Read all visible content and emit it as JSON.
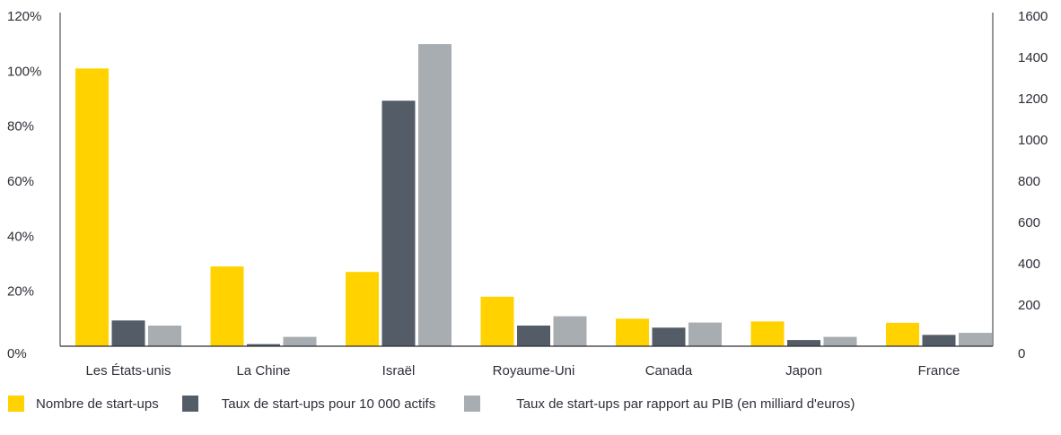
{
  "chart_data": {
    "type": "bar",
    "categories": [
      "Les États-unis",
      "La Chine",
      "Israël",
      "Royaume-Uni",
      "Canada",
      "Japon",
      "France"
    ],
    "series": [
      {
        "name": "Nombre de start-ups",
        "axis": "left",
        "color": "#ffd200",
        "values": [
          101,
          29,
          27,
          18,
          10,
          9,
          8.5
        ]
      },
      {
        "name": "Taux de start-ups pour 10 000 actifs",
        "axis": "right",
        "color": "#545c67",
        "values": [
          125,
          10,
          1190,
          100,
          90,
          30,
          55
        ]
      },
      {
        "name": "Taux de start-ups par rapport au PIB (en milliard d'euros)",
        "axis": "right",
        "color": "#a8adb2",
        "values": [
          100,
          45,
          1465,
          145,
          115,
          45,
          65
        ]
      }
    ],
    "y_left": {
      "ticks": [
        "0%",
        "20%",
        "40%",
        "60%",
        "80%",
        "100%",
        "120%"
      ],
      "min": 0,
      "max": 120,
      "unit": "%"
    },
    "y_right": {
      "ticks": [
        "0",
        "200",
        "400",
        "600",
        "800",
        "1000",
        "1200",
        "1400",
        "1600"
      ],
      "min": 0,
      "max": 1600
    },
    "grid": false,
    "legend_position": "bottom"
  }
}
